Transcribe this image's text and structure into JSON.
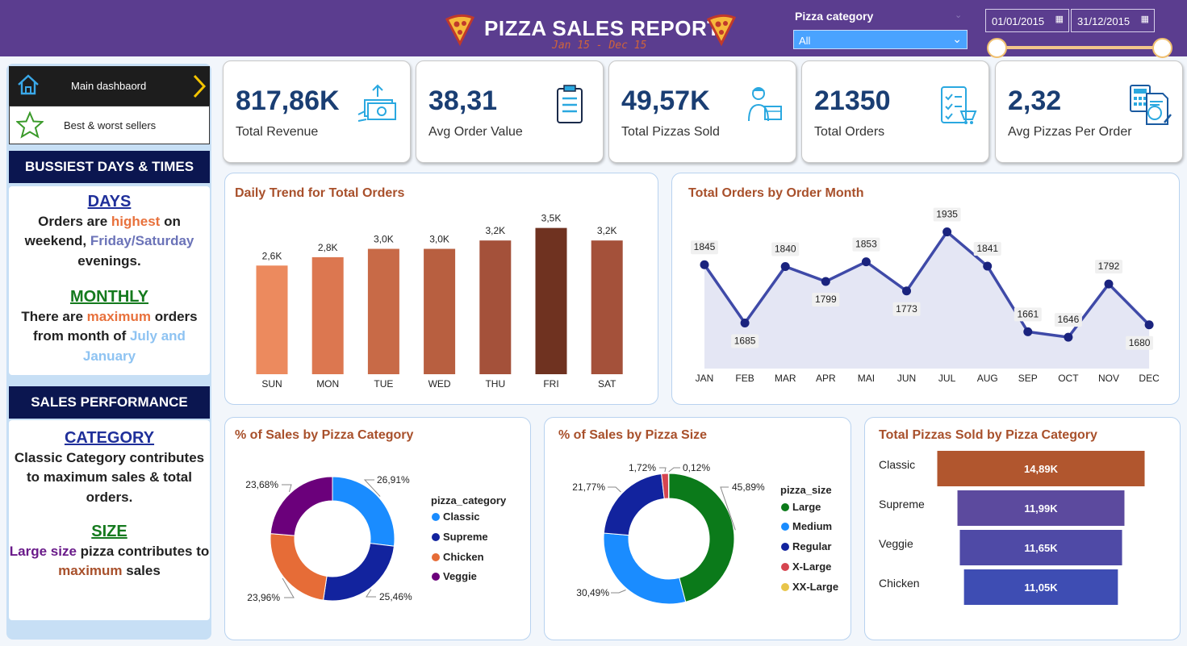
{
  "header": {
    "title": "PIZZA SALES REPORT",
    "subtitle": "Jan 15 - Dec 15",
    "filter_label": "Pizza category",
    "filter_value": "All",
    "date_start": "01/01/2015",
    "date_end": "31/12/2015"
  },
  "nav": {
    "main": "Main dashbaord",
    "second": "Best & worst sellers"
  },
  "insights": {
    "busy_title": "BUSSIEST DAYS & TIMES",
    "days_head": "DAYS",
    "days_1": "Orders are ",
    "days_2": "highest",
    "days_3": " on weekend, ",
    "days_4": "Friday/Saturday",
    "days_5": " evenings.",
    "monthly_head": "MONTHLY",
    "monthly_1": "There are ",
    "monthly_2": "maximum",
    "monthly_3": " orders from month of ",
    "monthly_4": "July and January",
    "perf_title": "SALES PERFORMANCE",
    "category_head": "CATEGORY",
    "category_text": "Classic Category contributes to maximum sales & total orders.",
    "size_head": "SIZE",
    "size_1": "Large size",
    "size_2": " pizza contributes to ",
    "size_3": "maximum",
    "size_4": " sales"
  },
  "kpis": [
    {
      "value": "817,86K",
      "label": "Total Revenue",
      "icon": "money-hand-icon"
    },
    {
      "value": "38,31",
      "label": "Avg Order Value",
      "icon": "clipboard-icon"
    },
    {
      "value": "49,57K",
      "label": "Total Pizzas Sold",
      "icon": "delivery-person-icon"
    },
    {
      "value": "21350",
      "label": "Total Orders",
      "icon": "checklist-cart-icon"
    },
    {
      "value": "2,32",
      "label": "Avg Pizzas Per Order",
      "icon": "calculator-invoice-icon"
    }
  ],
  "colors": {
    "header_bg": "#5b3d8f",
    "highlight_orange": "#e8713c",
    "highlight_purple": "#6b73b8",
    "highlight_lightblue": "#8ec3f2",
    "green": "#157a1e",
    "navy": "#1f2f9a",
    "size_purple": "#6a1b8a",
    "brown": "#a8502b"
  },
  "chart_data": [
    {
      "type": "bar",
      "title": "Daily Trend for Total Orders",
      "categories": [
        "SUN",
        "MON",
        "TUE",
        "WED",
        "THU",
        "FRI",
        "SAT"
      ],
      "values": [
        2.6,
        2.8,
        3.0,
        3.0,
        3.2,
        3.5,
        3.2
      ],
      "labels": [
        "2,6K",
        "2,8K",
        "3,0K",
        "3,0K",
        "3,2K",
        "3,5K",
        "3,2K"
      ],
      "colors": [
        "#ec8a5e",
        "#dc7750",
        "#c86a47",
        "#b85f40",
        "#a4513a",
        "#6f3220",
        "#a4513a"
      ],
      "ylim": [
        0,
        3.9
      ]
    },
    {
      "type": "area",
      "title": "Total Orders by Order Month",
      "categories": [
        "JAN",
        "FEB",
        "MAR",
        "APR",
        "MAI",
        "JUN",
        "JUL",
        "AUG",
        "SEP",
        "OCT",
        "NOV",
        "DEC"
      ],
      "values": [
        1845,
        1685,
        1840,
        1799,
        1853,
        1773,
        1935,
        1841,
        1661,
        1646,
        1792,
        1680
      ],
      "ylim": [
        1560,
        1965
      ],
      "color": "#3f4aa8",
      "fill": "#e4e6f4"
    },
    {
      "type": "pie",
      "title": "% of Sales by Pizza Category",
      "legend_title": "pizza_category",
      "slices": [
        {
          "name": "Classic",
          "value": 26.91,
          "label": "26,91%",
          "color": "#1a8cff"
        },
        {
          "name": "Supreme",
          "value": 25.46,
          "label": "25,46%",
          "color": "#12239e"
        },
        {
          "name": "Chicken",
          "value": 23.96,
          "label": "23,96%",
          "color": "#e66c37"
        },
        {
          "name": "Veggie",
          "value": 23.68,
          "label": "23,68%",
          "color": "#6b007b"
        }
      ]
    },
    {
      "type": "pie",
      "title": "% of Sales by Pizza Size",
      "legend_title": "pizza_size",
      "slices": [
        {
          "name": "Large",
          "value": 45.89,
          "label": "45,89%",
          "color": "#0b7a1a"
        },
        {
          "name": "Medium",
          "value": 30.49,
          "label": "30,49%",
          "color": "#1a8cff"
        },
        {
          "name": "Regular",
          "value": 21.77,
          "label": "21,77%",
          "color": "#12239e"
        },
        {
          "name": "X-Large",
          "value": 1.72,
          "label": "1,72%",
          "color": "#d64550"
        },
        {
          "name": "XX-Large",
          "value": 0.12,
          "label": "0,12%",
          "color": "#e8c54a"
        }
      ]
    },
    {
      "type": "bar",
      "orientation": "horizontal-funnel",
      "title": "Total Pizzas Sold by Pizza Category",
      "categories": [
        "Classic",
        "Supreme",
        "Veggie",
        "Chicken"
      ],
      "values": [
        14.89,
        11.99,
        11.65,
        11.05
      ],
      "labels": [
        "14,89K",
        "11,99K",
        "11,65K",
        "11,05K"
      ],
      "colors": [
        "#b1562e",
        "#5c4a9e",
        "#4f4aa6",
        "#3e4db3"
      ]
    }
  ]
}
